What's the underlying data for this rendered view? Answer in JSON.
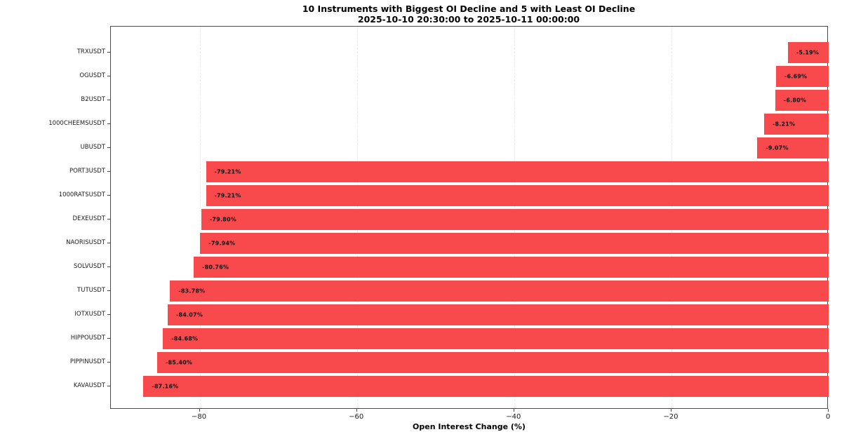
{
  "chart_data": {
    "type": "bar",
    "orientation": "horizontal",
    "title": "10 Instruments with Biggest OI Decline and 5 with Least OI Decline",
    "subtitle": "2025-10-10 20:30:00 to 2025-10-11 00:00:00",
    "xlabel": "Open Interest Change (%)",
    "ylabel": "",
    "categories": [
      "TRXUSDT",
      "OGUSDT",
      "B2USDT",
      "1000CHEEMSUSDT",
      "UBUSDT",
      "PORT3USDT",
      "1000RATSUSDT",
      "DEXEUSDT",
      "NAORISUSDT",
      "SOLVUSDT",
      "TUTUSDT",
      "IOTXUSDT",
      "HIPPOUSDT",
      "PIPPINUSDT",
      "KAVAUSDT"
    ],
    "values": [
      -5.19,
      -6.69,
      -6.8,
      -8.21,
      -9.07,
      -79.21,
      -79.21,
      -79.8,
      -79.94,
      -80.76,
      -83.78,
      -84.07,
      -84.68,
      -85.4,
      -87.16
    ],
    "bar_labels": [
      "-5.19%",
      "-6.69%",
      "-6.80%",
      "-8.21%",
      "-9.07%",
      "-79.21%",
      "-79.21%",
      "-79.80%",
      "-79.94%",
      "-80.76%",
      "-83.78%",
      "-84.07%",
      "-84.68%",
      "-85.40%",
      "-87.16%"
    ],
    "xlim": [
      -91.3,
      0
    ],
    "xticks": [
      -80,
      -60,
      -40,
      -20,
      0
    ],
    "xtick_labels": [
      "−80",
      "−60",
      "−40",
      "−20",
      "0"
    ],
    "bar_color": "#f8494d",
    "grid": true,
    "legend": false,
    "background": "#ffffff"
  }
}
